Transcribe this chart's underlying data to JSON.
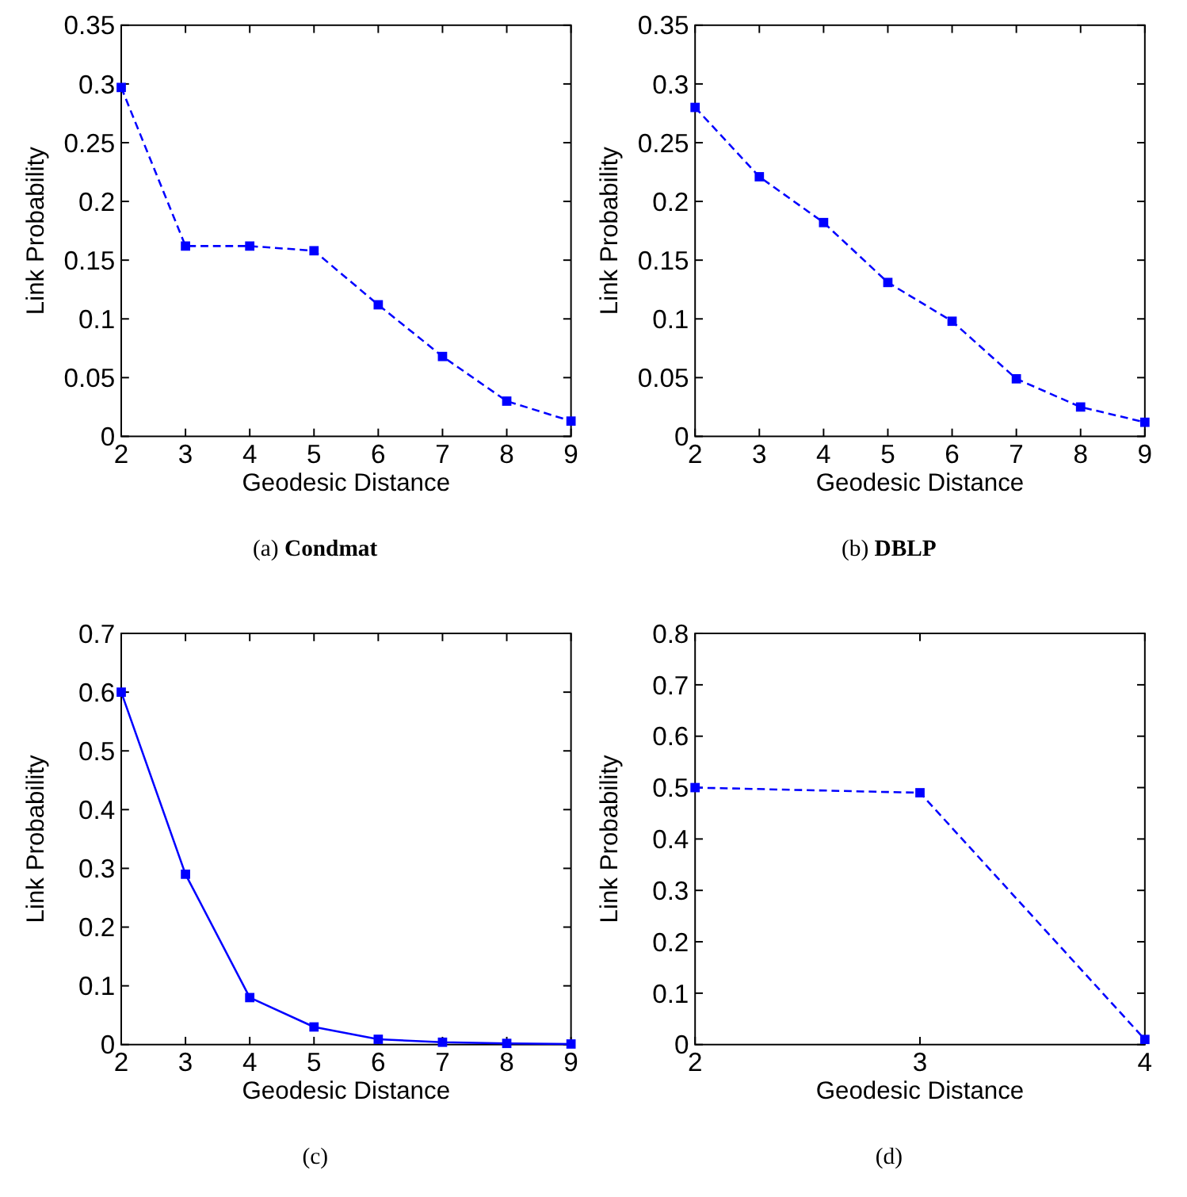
{
  "chart_data": [
    {
      "type": "line",
      "title": "(a) Condmat",
      "xlabel": "Geodesic Distance",
      "ylabel": "Link Probability",
      "x": [
        2,
        3,
        4,
        5,
        6,
        7,
        8,
        9
      ],
      "series": [
        {
          "color": "#0000ff",
          "values": [
            0.297,
            0.162,
            0.162,
            0.158,
            0.112,
            0.068,
            0.03,
            0.013
          ]
        }
      ],
      "xlim": [
        2,
        9
      ],
      "xticks": [
        2,
        3,
        4,
        5,
        6,
        7,
        8,
        9
      ],
      "ylim": [
        0,
        0.35
      ],
      "yticks": [
        0,
        0.05,
        0.1,
        0.15,
        0.2,
        0.25,
        0.3,
        0.35
      ],
      "marker": "square",
      "line_style": "dashed"
    },
    {
      "type": "line",
      "title": "(b) DBLP",
      "xlabel": "Geodesic Distance",
      "ylabel": "Link Probability",
      "x": [
        2,
        3,
        4,
        5,
        6,
        7,
        8,
        9
      ],
      "series": [
        {
          "color": "#0000ff",
          "values": [
            0.28,
            0.221,
            0.182,
            0.131,
            0.098,
            0.049,
            0.025,
            0.012
          ]
        }
      ],
      "xlim": [
        2,
        9
      ],
      "xticks": [
        2,
        3,
        4,
        5,
        6,
        7,
        8,
        9
      ],
      "ylim": [
        0,
        0.35
      ],
      "yticks": [
        0,
        0.05,
        0.1,
        0.15,
        0.2,
        0.25,
        0.3,
        0.35
      ],
      "marker": "square",
      "line_style": "dashed"
    },
    {
      "type": "line",
      "title": "(c)",
      "xlabel": "Geodesic Distance",
      "ylabel": "Link Probability",
      "x": [
        2,
        3,
        4,
        5,
        6,
        7,
        8,
        9
      ],
      "series": [
        {
          "color": "#0000ff",
          "values": [
            0.6,
            0.29,
            0.08,
            0.03,
            0.009,
            0.004,
            0.002,
            0.001
          ]
        }
      ],
      "xlim": [
        2,
        9
      ],
      "xticks": [
        2,
        3,
        4,
        5,
        6,
        7,
        8,
        9
      ],
      "ylim": [
        0,
        0.7
      ],
      "yticks": [
        0,
        0.1,
        0.2,
        0.3,
        0.4,
        0.5,
        0.6,
        0.7
      ],
      "marker": "square",
      "line_style": "solid"
    },
    {
      "type": "line",
      "title": "(d)",
      "xlabel": "Geodesic Distance",
      "ylabel": "Link Probability",
      "x": [
        2,
        3,
        4
      ],
      "series": [
        {
          "color": "#0000ff",
          "values": [
            0.5,
            0.49,
            0.01
          ]
        }
      ],
      "xlim": [
        2,
        4
      ],
      "xticks": [
        2,
        3,
        4
      ],
      "ylim": [
        0,
        0.8
      ],
      "yticks": [
        0,
        0.1,
        0.2,
        0.3,
        0.4,
        0.5,
        0.6,
        0.7,
        0.8
      ],
      "marker": "square",
      "line_style": "dashed"
    }
  ]
}
